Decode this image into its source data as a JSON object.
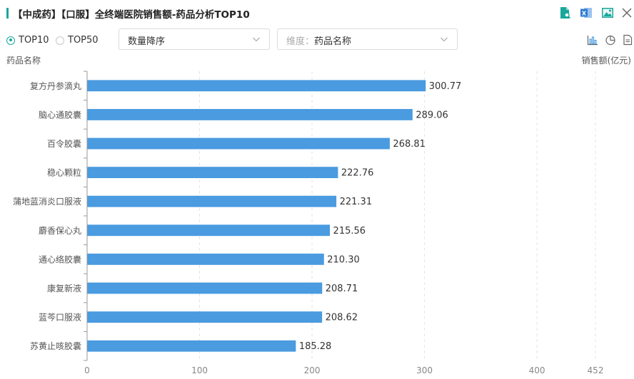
{
  "header": {
    "title": "【中成药】【口服】全终端医院销售额-药品分析TOP10"
  },
  "toolbar": {
    "icons": [
      "document-search-icon",
      "excel-export-icon",
      "image-export-icon",
      "close-icon"
    ]
  },
  "controls": {
    "radio_options": [
      {
        "label": "TOP10",
        "checked": true
      },
      {
        "label": "TOP50",
        "checked": false
      }
    ],
    "sort_select": {
      "value": "数量降序"
    },
    "dimension_select": {
      "prefix": "维度：",
      "value": "药品名称"
    },
    "view_icons": [
      "bar-chart-icon",
      "pie-chart-icon",
      "table-view-icon"
    ]
  },
  "colors": {
    "accent": "#1aa79c",
    "bar": "#4a9be0",
    "excel": "#2f7bd1",
    "image": "#1aa79c"
  },
  "chart_data": {
    "type": "bar",
    "orientation": "horizontal",
    "ylabel": "药品名称",
    "xlabel": "销售额(亿元)",
    "categories": [
      "复方丹参滴丸",
      "脑心通胶囊",
      "百令胶囊",
      "稳心颗粒",
      "蒲地蓝消炎口服液",
      "麝香保心丸",
      "通心络胶囊",
      "康复新液",
      "蓝芩口服液",
      "苏黄止咳胶囊"
    ],
    "values": [
      300.77,
      289.06,
      268.81,
      222.76,
      221.31,
      215.56,
      210.3,
      208.71,
      208.62,
      185.28
    ],
    "value_labels": [
      "300.77",
      "289.06",
      "268.81",
      "222.76",
      "221.31",
      "215.56",
      "210.30",
      "208.71",
      "208.62",
      "185.28"
    ],
    "xlim": [
      0,
      452
    ],
    "xticks": [
      0,
      100,
      200,
      300,
      400,
      452
    ],
    "grid": true
  }
}
